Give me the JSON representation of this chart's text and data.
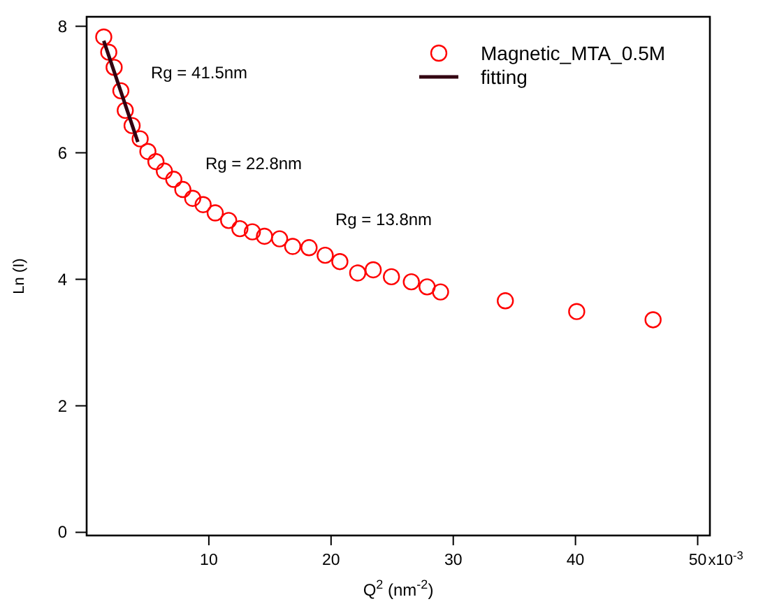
{
  "chart_data": {
    "type": "scatter",
    "xlabel": "Q$^{2}$ (nm$^{-2}$)",
    "ylabel": "Ln (I)",
    "xlim": [
      0,
      51
    ],
    "ylim": [
      -0.05,
      8.15
    ],
    "xticks": [
      10,
      20,
      30,
      40,
      50
    ],
    "yticks": [
      0,
      2,
      4,
      6,
      8
    ],
    "grid": false,
    "legend": "top right",
    "series": [
      {
        "name": "Magnetic_MTA_0.5M",
        "marker": "circle",
        "color": "#ff0000",
        "x": [
          1.4,
          1.81,
          2.25,
          2.8,
          3.16,
          3.72,
          4.38,
          5.01,
          5.67,
          6.36,
          7.13,
          7.87,
          8.68,
          9.53,
          10.52,
          11.62,
          12.54,
          13.56,
          14.55,
          15.79,
          16.86,
          18.2,
          19.52,
          20.72,
          22.18,
          23.45,
          24.94,
          26.57,
          27.86,
          28.96,
          34.26,
          40.1,
          46.35
        ],
        "values": [
          7.83,
          7.59,
          7.35,
          6.98,
          6.67,
          6.43,
          6.22,
          6.02,
          5.86,
          5.71,
          5.58,
          5.42,
          5.28,
          5.18,
          5.05,
          4.93,
          4.8,
          4.75,
          4.68,
          4.64,
          4.52,
          4.5,
          4.38,
          4.28,
          4.1,
          4.15,
          4.04,
          3.96,
          3.88,
          3.8,
          3.66,
          3.49,
          3.36
        ]
      },
      {
        "name": "fitting",
        "type": "line",
        "line_style": "solid",
        "color": "#330011",
        "x": [
          1.4,
          4.19
        ],
        "values": [
          7.77,
          6.17
        ]
      }
    ],
    "annotations": [
      "Rg = 41.5nm",
      "Rg = 22.8nm",
      "Rg = 13.8nm",
      "x10$^{-3}$"
    ]
  }
}
